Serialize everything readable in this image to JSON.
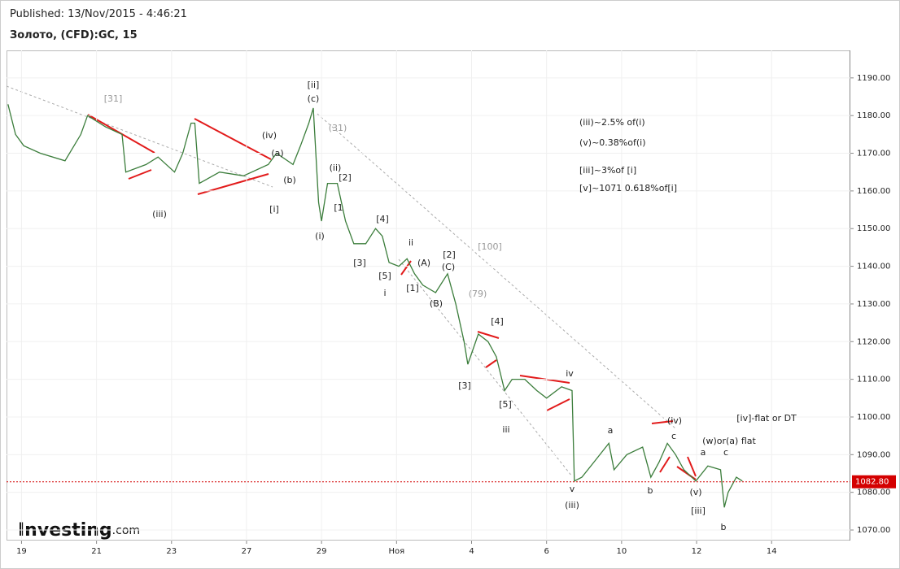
{
  "header": {
    "published": "Published: 13/Nov/2015 - 4:46:21",
    "instrument": "Золото, (CFD):GC, 15"
  },
  "logo": {
    "text": "Investing",
    "suffix": ".com"
  },
  "chart_data": {
    "type": "line",
    "xlim": [
      -0.2,
      11.05
    ],
    "xticks": [
      {
        "value": 0,
        "label": "19"
      },
      {
        "value": 1,
        "label": "21"
      },
      {
        "value": 2,
        "label": "23"
      },
      {
        "value": 3,
        "label": "27"
      },
      {
        "value": 4,
        "label": "29"
      },
      {
        "value": 5,
        "label": "Ноя"
      },
      {
        "value": 6,
        "label": "4"
      },
      {
        "value": 7,
        "label": "6"
      },
      {
        "value": 8,
        "label": "10"
      },
      {
        "value": 9,
        "label": "12"
      },
      {
        "value": 10,
        "label": "14"
      }
    ],
    "ylim": [
      1067.2,
      1197.3
    ],
    "yticks": [
      {
        "value": 1070,
        "label": "1070.00"
      },
      {
        "value": 1080,
        "label": "1080.00"
      },
      {
        "value": 1090,
        "label": "1090.00"
      },
      {
        "value": 1100,
        "label": "1100.00"
      },
      {
        "value": 1110,
        "label": "1110.00"
      },
      {
        "value": 1120,
        "label": "1120.00"
      },
      {
        "value": 1130,
        "label": "1130.00"
      },
      {
        "value": 1140,
        "label": "1140.00"
      },
      {
        "value": 1150,
        "label": "1150.00"
      },
      {
        "value": 1160,
        "label": "1160.00"
      },
      {
        "value": 1170,
        "label": "1170.00"
      },
      {
        "value": 1180,
        "label": "1180.00"
      },
      {
        "value": 1190,
        "label": "1190.00"
      }
    ],
    "grid": true,
    "current_price": {
      "value": 1082.8,
      "label": "1082.80",
      "color": "#d40000"
    },
    "series": [
      {
        "color": "#3b7d3b",
        "x": [
          -0.18,
          -0.08,
          0.03,
          0.25,
          0.58,
          0.79,
          0.88,
          1.12,
          1.34,
          1.39,
          1.66,
          1.82,
          2.04,
          2.15,
          2.26,
          2.31,
          2.37,
          2.64,
          2.96,
          3.29,
          3.4,
          3.62,
          3.72,
          3.83,
          3.89,
          3.96,
          4.0,
          4.08,
          4.21,
          4.32,
          4.43,
          4.59,
          4.72,
          4.81,
          4.9,
          5.03,
          5.14,
          5.24,
          5.35,
          5.52,
          5.68,
          5.79,
          5.9,
          5.95,
          6.09,
          6.22,
          6.33,
          6.44,
          6.54,
          6.71,
          6.87,
          7.0,
          7.2,
          7.34,
          7.37,
          7.47,
          7.63,
          7.83,
          7.9,
          8.07,
          8.28,
          8.39,
          8.5,
          8.61,
          8.72,
          8.83,
          8.99,
          9.15,
          9.32,
          9.37,
          9.42,
          9.53,
          9.61
        ],
        "values": [
          1183,
          1175,
          1172,
          1170,
          1168,
          1175,
          1180,
          1177,
          1175,
          1165,
          1167,
          1169,
          1165,
          1170,
          1178,
          1178,
          1162,
          1165,
          1164,
          1167,
          1170,
          1167,
          1172,
          1178,
          1182,
          1157,
          1152,
          1162,
          1162,
          1152,
          1146,
          1146,
          1150,
          1148,
          1141,
          1140,
          1142,
          1138,
          1135,
          1133,
          1138,
          1130,
          1120,
          1114,
          1122,
          1120,
          1116,
          1107,
          1110,
          1110,
          1107,
          1105,
          1108,
          1107,
          1083,
          1084,
          1088,
          1093,
          1086,
          1090,
          1092,
          1084,
          1088,
          1093,
          1090,
          1086,
          1083,
          1087,
          1086,
          1076,
          1080,
          1084,
          1083
        ]
      }
    ],
    "annotations": [
      "[31]",
      "[ii]",
      "(c)",
      "(31)",
      "(iv)",
      "(a)",
      "(b)",
      "(iii)",
      "[i]",
      "(ii)",
      "[2]",
      "[1",
      "(i)",
      "[4]",
      "[3]",
      "ii",
      "(A)",
      "[5]",
      "[1]",
      "i",
      "[2]",
      "(C)",
      "(B)",
      "[100]",
      "(79)",
      "[4]",
      "[3]",
      "[5]",
      "iv",
      "iii",
      "v",
      "(iii)",
      "a",
      "(iv)",
      "c",
      "b",
      "(v)",
      "[iii]",
      "(w)or(a) flat",
      "a",
      "c",
      "b",
      "[iv]-flat or DT"
    ],
    "notes": [
      "(iii)~2.5% of(i)",
      "(v)~0.38%of(i)",
      "[iii]~3%of [i]",
      "[v]~1071 0.618%of[i]"
    ]
  }
}
